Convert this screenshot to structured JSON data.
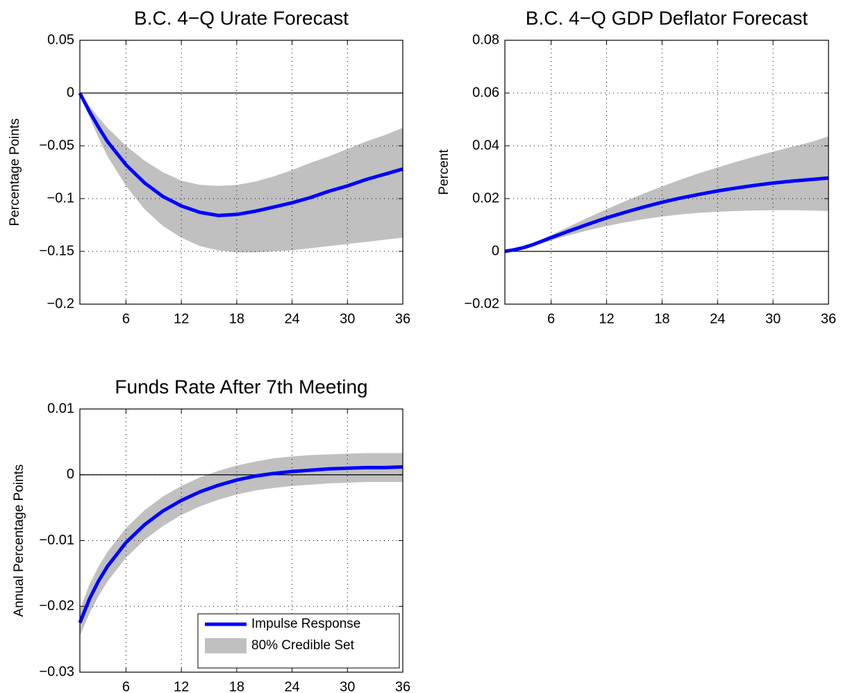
{
  "chart_data": [
    {
      "type": "line",
      "title": "B.C. 4−Q Urate Forecast",
      "ylabel": "Percentage Points",
      "x": [
        1,
        2,
        3,
        4,
        6,
        8,
        10,
        12,
        14,
        16,
        18,
        20,
        22,
        24,
        26,
        28,
        30,
        32,
        34,
        36
      ],
      "xlim": [
        1,
        36
      ],
      "xticks": [
        6,
        12,
        18,
        24,
        30,
        36
      ],
      "ylim": [
        -0.2,
        0.05
      ],
      "yticks": [
        {
          "value": -0.2,
          "label": "−0.2"
        },
        {
          "value": -0.15,
          "label": "−0.15"
        },
        {
          "value": -0.1,
          "label": "−0.1"
        },
        {
          "value": -0.05,
          "label": "−0.05"
        },
        0,
        0.05
      ],
      "grid": true,
      "hline": 0,
      "series": [
        {
          "color": "#0000ff",
          "values": [
            0,
            -0.017,
            -0.032,
            -0.046,
            -0.068,
            -0.085,
            -0.098,
            -0.107,
            -0.113,
            -0.116,
            -0.115,
            -0.112,
            -0.108,
            -0.104,
            -0.099,
            -0.093,
            -0.088,
            -0.082,
            -0.077,
            -0.072
          ]
        }
      ],
      "band": {
        "color": "#c0c0c0",
        "upper": [
          0,
          -0.012,
          -0.023,
          -0.033,
          -0.05,
          -0.064,
          -0.075,
          -0.083,
          -0.087,
          -0.088,
          -0.087,
          -0.084,
          -0.079,
          -0.073,
          -0.066,
          -0.06,
          -0.053,
          -0.046,
          -0.04,
          -0.033
        ],
        "lower": [
          0,
          -0.022,
          -0.042,
          -0.06,
          -0.088,
          -0.11,
          -0.126,
          -0.137,
          -0.145,
          -0.149,
          -0.151,
          -0.151,
          -0.15,
          -0.149,
          -0.147,
          -0.145,
          -0.143,
          -0.141,
          -0.139,
          -0.137
        ]
      }
    },
    {
      "type": "line",
      "title": "B.C. 4−Q GDP Deflator Forecast",
      "ylabel": "Percent",
      "x": [
        1,
        2,
        3,
        4,
        6,
        8,
        10,
        12,
        14,
        16,
        18,
        20,
        22,
        24,
        26,
        28,
        30,
        32,
        34,
        36
      ],
      "xlim": [
        1,
        36
      ],
      "xticks": [
        6,
        12,
        18,
        24,
        30,
        36
      ],
      "ylim": [
        -0.02,
        0.08
      ],
      "yticks": [
        {
          "value": -0.02,
          "label": "−0.02"
        },
        0,
        0.02,
        0.04,
        0.06,
        0.08
      ],
      "grid": true,
      "hline": 0,
      "series": [
        {
          "color": "#0000ff",
          "values": [
            0,
            0.0006,
            0.0014,
            0.0025,
            0.0052,
            0.0078,
            0.0103,
            0.0127,
            0.0148,
            0.0168,
            0.0186,
            0.0202,
            0.0216,
            0.0229,
            0.024,
            0.025,
            0.0259,
            0.0266,
            0.0272,
            0.0278
          ]
        }
      ],
      "band": {
        "color": "#c0c0c0",
        "upper": [
          0,
          0.0007,
          0.0016,
          0.003,
          0.0062,
          0.0095,
          0.0128,
          0.016,
          0.019,
          0.0219,
          0.0246,
          0.0272,
          0.0296,
          0.0318,
          0.0339,
          0.0359,
          0.0378,
          0.0396,
          0.0413,
          0.0436
        ],
        "lower": [
          0,
          0.0005,
          0.0012,
          0.002,
          0.0042,
          0.0062,
          0.008,
          0.0096,
          0.011,
          0.0122,
          0.0132,
          0.014,
          0.0146,
          0.015,
          0.0153,
          0.0155,
          0.0156,
          0.0156,
          0.0155,
          0.0153
        ]
      }
    },
    {
      "type": "line",
      "title": "Funds Rate After 7th Meeting",
      "ylabel": "Annual Percentage Points",
      "x": [
        1,
        2,
        3,
        4,
        6,
        8,
        10,
        12,
        14,
        16,
        18,
        20,
        22,
        24,
        26,
        28,
        30,
        32,
        34,
        36
      ],
      "xlim": [
        1,
        36
      ],
      "xticks": [
        6,
        12,
        18,
        24,
        30,
        36
      ],
      "ylim": [
        -0.03,
        0.01
      ],
      "yticks": [
        {
          "value": -0.03,
          "label": "−0.03"
        },
        {
          "value": -0.02,
          "label": "−0.02"
        },
        {
          "value": -0.01,
          "label": "−0.01"
        },
        0,
        0.01
      ],
      "grid": true,
      "hline": 0,
      "legend": "lower right",
      "series": [
        {
          "name": "Impulse Response",
          "color": "#0000ff",
          "values": [
            -0.0225,
            -0.019,
            -0.0162,
            -0.0139,
            -0.0103,
            -0.0076,
            -0.0055,
            -0.0039,
            -0.0026,
            -0.0016,
            -0.0008,
            -0.0002,
            0.0002,
            0.0005,
            0.0007,
            0.0009,
            0.001,
            0.0011,
            0.0011,
            0.0012
          ]
        }
      ],
      "band": {
        "name": "80% Credible Set",
        "color": "#c0c0c0",
        "upper": [
          -0.0205,
          -0.0168,
          -0.014,
          -0.0117,
          -0.0081,
          -0.0054,
          -0.0033,
          -0.0017,
          -0.0004,
          0.0006,
          0.0014,
          0.002,
          0.0025,
          0.0028,
          0.003,
          0.0031,
          0.0032,
          0.0033,
          0.0033,
          0.0033
        ],
        "lower": [
          -0.0245,
          -0.0212,
          -0.0185,
          -0.0162,
          -0.0126,
          -0.0099,
          -0.0078,
          -0.0061,
          -0.0048,
          -0.0038,
          -0.003,
          -0.0024,
          -0.002,
          -0.0017,
          -0.0015,
          -0.0013,
          -0.0012,
          -0.0011,
          -0.0011,
          -0.0011
        ]
      }
    }
  ]
}
